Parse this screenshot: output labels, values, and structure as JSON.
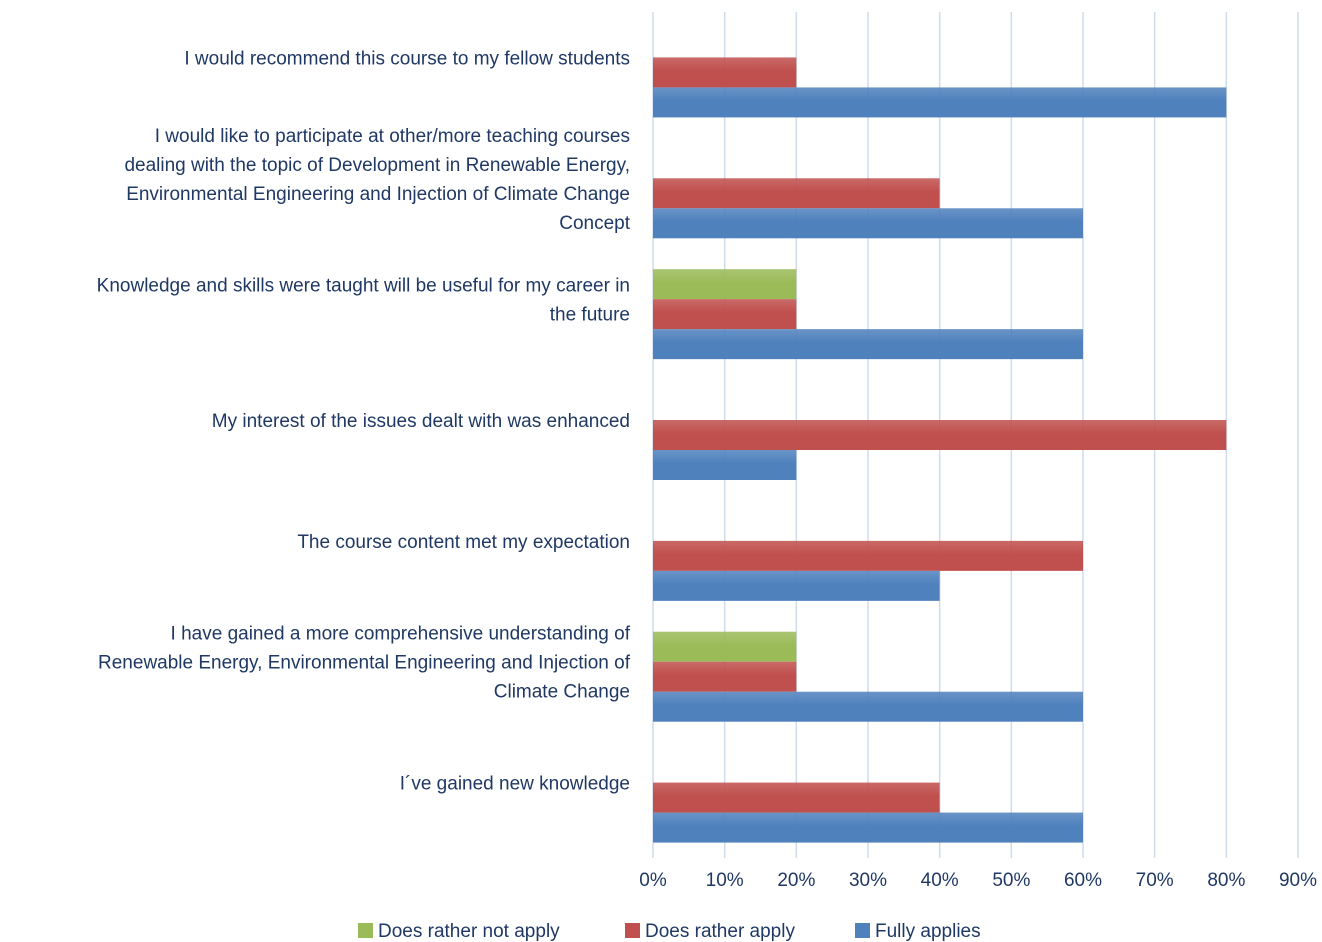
{
  "chart_data": {
    "type": "bar",
    "orientation": "horizontal",
    "title": "",
    "xlabel": "",
    "ylabel": "",
    "xlim": [
      0,
      90
    ],
    "x_ticks": [
      "0%",
      "10%",
      "20%",
      "30%",
      "40%",
      "50%",
      "60%",
      "70%",
      "80%",
      "90%"
    ],
    "grid": true,
    "legend_position": "bottom",
    "categories": [
      [
        "I would recommend this course to my fellow students"
      ],
      [
        "I would like to participate at other/more teaching courses",
        "dealing with the topic of Development in Renewable Energy,",
        "Environmental Engineering and Injection of Climate Change",
        "Concept"
      ],
      [
        "Knowledge and skills were taught will be useful for my career in",
        "the future"
      ],
      [
        "My interest of the issues dealt with was enhanced"
      ],
      [
        "The course content met my expectation"
      ],
      [
        "I have gained a more comprehensive understanding of",
        "Renewable Energy, Environmental Engineering and Injection of",
        "Climate Change"
      ],
      [
        "I´ve gained new knowledge"
      ]
    ],
    "series": [
      {
        "name": "Does rather not apply",
        "color": "#9bbb59",
        "values": [
          0,
          0,
          20,
          0,
          0,
          20,
          0
        ]
      },
      {
        "name": "Does rather apply",
        "color": "#c0504d",
        "values": [
          20,
          40,
          20,
          80,
          60,
          20,
          40
        ]
      },
      {
        "name": "Fully applies",
        "color": "#4f81bd",
        "values": [
          80,
          60,
          60,
          20,
          40,
          60,
          60
        ]
      }
    ]
  }
}
